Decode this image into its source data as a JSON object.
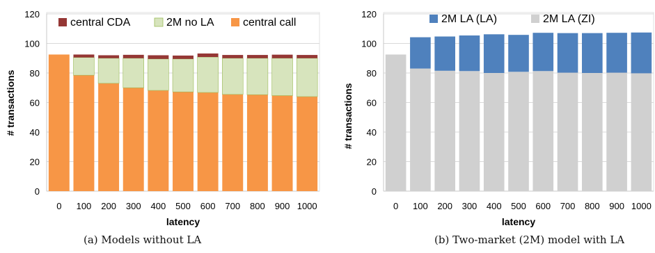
{
  "captions": [
    "(a) Models without LA",
    "(b) Two-market (2M) model with LA"
  ],
  "chart_data": [
    {
      "type": "bar",
      "stacked": true,
      "categories": [
        "0",
        "100",
        "200",
        "300",
        "400",
        "500",
        "600",
        "700",
        "800",
        "900",
        "1000"
      ],
      "xlabel": "latency",
      "ylabel": "# transactions",
      "ylim": [
        0,
        120
      ],
      "yticks": [
        0,
        20,
        40,
        60,
        80,
        100,
        120
      ],
      "grid": true,
      "legend_position": "top",
      "series": [
        {
          "name": "central call",
          "color": "#F79646",
          "values": [
            92.5,
            78.5,
            73,
            70,
            68.2,
            67.2,
            66.8,
            65.5,
            65.3,
            64.7,
            64
          ]
        },
        {
          "name": "2M no LA",
          "color": "#D7E4BD",
          "values": [
            0,
            12,
            17,
            20,
            21.3,
            22.3,
            24,
            24.5,
            24.7,
            25.3,
            26
          ]
        },
        {
          "name": "central CDA",
          "color": "#953735",
          "values": [
            0,
            2,
            2,
            2.3,
            2.5,
            2.3,
            2.4,
            2.2,
            2.2,
            2.4,
            2.2
          ]
        }
      ],
      "legend_order": [
        "central CDA",
        "2M no LA",
        "central call"
      ]
    },
    {
      "type": "bar",
      "stacked": true,
      "categories": [
        "0",
        "100",
        "200",
        "300",
        "400",
        "500",
        "600",
        "700",
        "800",
        "900",
        "1000"
      ],
      "xlabel": "latency",
      "ylabel": "# transactions",
      "ylim": [
        0,
        120
      ],
      "yticks": [
        0,
        20,
        40,
        60,
        80,
        100,
        120
      ],
      "grid": true,
      "legend_position": "top",
      "series": [
        {
          "name": "2M LA (ZI)",
          "color": "#D0D0D0",
          "values": [
            92.5,
            83,
            81.5,
            81.3,
            80,
            80.8,
            81.3,
            80.2,
            80,
            80.2,
            79.8
          ]
        },
        {
          "name": "2M LA (LA)",
          "color": "#4F81BD",
          "values": [
            0,
            21.2,
            23.2,
            24.1,
            26.2,
            25,
            25.9,
            26.8,
            27,
            27,
            27.6
          ]
        }
      ],
      "legend_order": [
        "2M LA (LA)",
        "2M LA (ZI)"
      ]
    }
  ]
}
